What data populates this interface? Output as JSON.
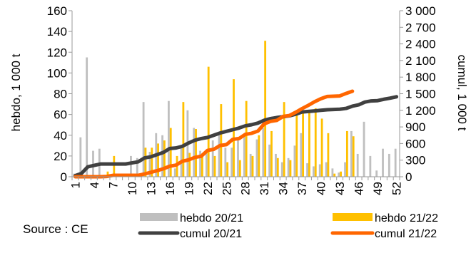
{
  "chart_data": {
    "type": "bar",
    "x_categories": [
      "1",
      "2",
      "3",
      "4",
      "5",
      "6",
      "7",
      "8",
      "9",
      "10",
      "11",
      "12",
      "13",
      "14",
      "15",
      "16",
      "17",
      "18",
      "19",
      "20",
      "21",
      "22",
      "23",
      "24",
      "25",
      "26",
      "27",
      "28",
      "29",
      "30",
      "31",
      "32",
      "33",
      "34",
      "35",
      "36",
      "37",
      "38",
      "39",
      "40",
      "41",
      "42",
      "43",
      "44",
      "45",
      "46",
      "47",
      "48",
      "49",
      "50",
      "51",
      "52"
    ],
    "x_tick_labels": [
      "1",
      "4",
      "7",
      "10",
      "13",
      "16",
      "19",
      "22",
      "25",
      "28",
      "31",
      "34",
      "37",
      "40",
      "43",
      "46",
      "49",
      "52"
    ],
    "ylabel_left": "hebdo, 1 000 t",
    "ylabel_right": "cumul, 1 000 t",
    "left_axis": {
      "min": 0,
      "max": 160,
      "ticks": [
        "0",
        "20",
        "40",
        "60",
        "80",
        "100",
        "120",
        "140",
        "160"
      ]
    },
    "right_axis": {
      "min": 0,
      "max": 3000,
      "ticks": [
        "0",
        "300",
        "600",
        "900",
        "1 200",
        "1 500",
        "1 800",
        "2 100",
        "2 400",
        "2 700",
        "3 000"
      ]
    },
    "series": [
      {
        "name": "hebdo 20/21",
        "type": "bar",
        "axis": "left",
        "color": "#bfbfbf",
        "values": [
          3,
          38,
          115,
          25,
          27,
          0,
          0,
          0,
          0,
          20,
          18,
          72,
          24,
          42,
          40,
          73,
          8,
          28,
          64,
          47,
          25,
          26,
          35,
          40,
          28,
          28,
          36,
          40,
          22,
          36,
          47,
          31,
          22,
          14,
          18,
          30,
          42,
          13,
          10,
          12,
          14,
          8,
          4,
          14,
          44,
          22,
          53,
          20,
          6,
          27,
          22,
          27
        ]
      },
      {
        "name": "hebdo 21/22",
        "type": "bar",
        "axis": "left",
        "color": "#ffc000",
        "values": [
          0,
          0,
          0,
          0,
          0,
          5,
          20,
          0,
          0,
          0,
          0,
          28,
          28,
          32,
          35,
          47,
          20,
          72,
          23,
          46,
          20,
          106,
          20,
          70,
          14,
          94,
          16,
          73,
          20,
          40,
          131,
          44,
          18,
          72,
          16,
          60,
          63,
          62,
          66,
          56,
          42,
          3,
          5,
          44,
          39
        ]
      },
      {
        "name": "cumul 20/21",
        "type": "line",
        "axis": "right",
        "color": "#404040",
        "values": [
          20,
          60,
          180,
          205,
          230,
          230,
          230,
          230,
          230,
          250,
          270,
          340,
          360,
          400,
          440,
          510,
          520,
          550,
          610,
          660,
          690,
          710,
          750,
          790,
          820,
          850,
          880,
          920,
          940,
          970,
          1020,
          1050,
          1070,
          1085,
          1100,
          1130,
          1170,
          1180,
          1190,
          1200,
          1210,
          1215,
          1220,
          1235,
          1275,
          1300,
          1350,
          1370,
          1375,
          1400,
          1420,
          1445
        ]
      },
      {
        "name": "cumul 21/22",
        "type": "line",
        "axis": "right",
        "color": "#ff6600",
        "values": [
          0,
          0,
          0,
          0,
          0,
          5,
          25,
          25,
          25,
          25,
          25,
          50,
          80,
          110,
          145,
          190,
          210,
          280,
          305,
          350,
          370,
          476,
          496,
          565,
          580,
          675,
          690,
          765,
          785,
          825,
          955,
          1000,
          1018,
          1090,
          1106,
          1165,
          1230,
          1290,
          1355,
          1410,
          1450,
          1455,
          1460,
          1505,
          1545
        ]
      }
    ],
    "legend": [
      {
        "label": "hebdo 20/21",
        "style": "bar",
        "color": "#bfbfbf"
      },
      {
        "label": "hebdo 21/22",
        "style": "bar",
        "color": "#ffc000"
      },
      {
        "label": "cumul 20/21",
        "style": "line",
        "color": "#404040"
      },
      {
        "label": "cumul 21/22",
        "style": "line",
        "color": "#ff6600"
      }
    ],
    "legend_position": "bottom",
    "grid": false
  },
  "source": "Source : CE"
}
